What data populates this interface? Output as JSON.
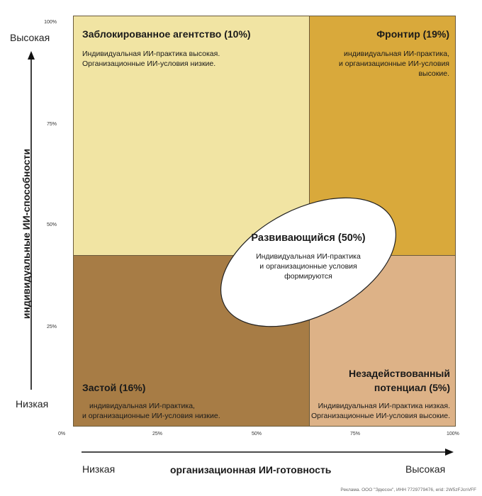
{
  "axes": {
    "y_label": "индивидуальные ИИ-способности",
    "x_label": "организационная ИИ-готовность",
    "y_high": "Высокая",
    "y_low": "Низкая",
    "x_low": "Низкая",
    "x_high": "Высокая",
    "y_ticks": [
      "100%",
      "75%",
      "50%",
      "25%"
    ],
    "x_ticks": [
      "0%",
      "25%",
      "50%",
      "75%",
      "100%"
    ]
  },
  "quadrants": {
    "top_left": {
      "title": "Заблокированное агентство (10%)",
      "desc_line1": "Индивидуальная ИИ-практика высокая.",
      "desc_line2": "Организационные ИИ-условия низкие.",
      "color": "#f1e4a3"
    },
    "top_right": {
      "title": "Фронтир (19%)",
      "desc_line1": "индивидуальная ИИ-практика,",
      "desc_line2": "и организационные ИИ-условия",
      "desc_line3": "высокие.",
      "color": "#d9a93b"
    },
    "bottom_left": {
      "title": "Застой (16%)",
      "desc_line1": "индивидуальная ИИ-практика,",
      "desc_line2": "и организационные ИИ-условия низкие.",
      "color": "#a77c45"
    },
    "bottom_right": {
      "title_line1": "Незадействованный",
      "title_line2": "потенциал (5%)",
      "desc_line1": "Индивидуальная ИИ-практика низкая.",
      "desc_line2": "Организационные ИИ-условия высокие.",
      "color": "#ddb287"
    }
  },
  "center": {
    "title": "Развивающийся (50%)",
    "desc_line1": "Индивидуальная ИИ-практика",
    "desc_line2": "и организационные условия",
    "desc_line3": "формируются"
  },
  "footnote": "Реклама. ООО \"Эдюсон\", ИНН 7729779476, erid: 2W5zFJcnVFF"
}
